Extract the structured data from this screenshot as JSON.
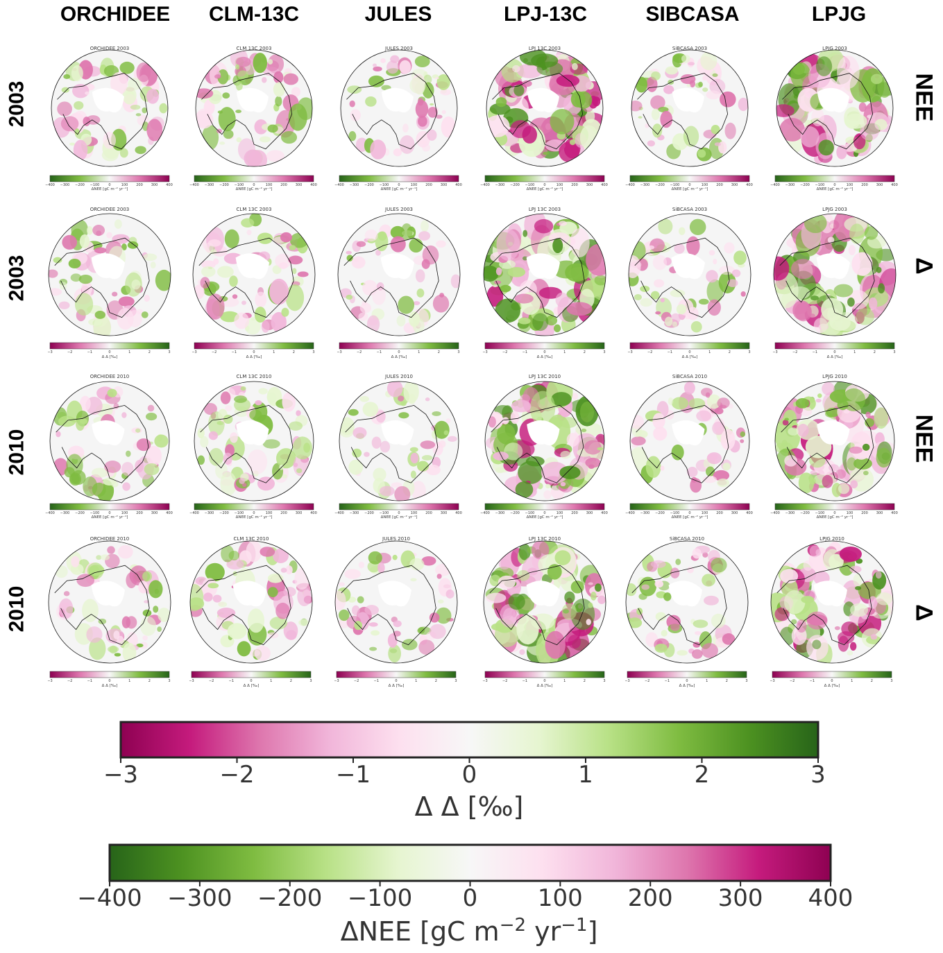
{
  "columns": [
    "ORCHIDEE",
    "CLM-13C",
    "JULES",
    "LPJ-13C",
    "SIBCASA",
    "LPJG"
  ],
  "rows": [
    {
      "year": "2003",
      "variable": "NEE",
      "type": "nee"
    },
    {
      "year": "2003",
      "variable": "Δ",
      "type": "delta"
    },
    {
      "year": "2010",
      "variable": "NEE",
      "type": "nee"
    },
    {
      "year": "2010",
      "variable": "Δ",
      "type": "delta"
    }
  ],
  "panel_titles": [
    [
      "ORCHIDEE 2003",
      "CLM 13C 2003",
      "JULES 2003",
      "LPJ 13C 2003",
      "SiBCASA 2003",
      "LPJG 2003"
    ],
    [
      "ORCHIDEE 2003",
      "CLM 13C 2003",
      "JULES 2003",
      "LPJ 13C 2003",
      "SiBCASA 2003",
      "LPJG 2003"
    ],
    [
      "ORCHIDEE 2010",
      "CLM 13C 2010",
      "JULES 2010",
      "LPJ 13C 2010",
      "SiBCASA 2010",
      "LPJG 2010"
    ],
    [
      "ORCHIDEE 2010",
      "CLM 13C 2010",
      "JULES 2010",
      "LPJ 13C 2010",
      "SiBCASA 2010",
      "LPJG 2010"
    ]
  ],
  "chart_data": [
    {
      "type": "heatmap",
      "description_kind": "small-multiple polar maps",
      "map_values_readable": false,
      "colorbars": [
        {
          "kind": "nee",
          "label": "ΔNEE [gC m⁻² yr⁻¹]",
          "ticks": [
            -400,
            -300,
            -200,
            -100,
            0,
            100,
            200,
            300,
            400
          ],
          "range": [
            -400,
            400
          ],
          "colors": [
            "#276419",
            "#7fbc41",
            "#f7f7f7",
            "#de77ae",
            "#8e0152"
          ]
        },
        {
          "kind": "delta",
          "label": "Δ Δ [‰]",
          "ticks": [
            -3,
            -2,
            -1,
            0,
            1,
            2,
            3
          ],
          "range": [
            -3,
            3
          ],
          "colors": [
            "#8e0152",
            "#de77ae",
            "#f7f7f7",
            "#7fbc41",
            "#276419"
          ]
        }
      ]
    },
    {
      "type": "heatmap",
      "role": "colorbar",
      "label": "Δ Δ [‰]",
      "ticks": [
        "−3",
        "−2",
        "−1",
        "0",
        "1",
        "2",
        "3"
      ],
      "range": [
        -3,
        3
      ],
      "colors": [
        "#8e0152",
        "#c51b7d",
        "#de77ae",
        "#f1b6da",
        "#fde0ef",
        "#f7f7f7",
        "#e6f5d0",
        "#b8e186",
        "#7fbc41",
        "#4d9221",
        "#276419"
      ]
    },
    {
      "type": "heatmap",
      "role": "colorbar",
      "label_main": "ΔNEE [gC m",
      "label_sup1": "−2",
      "label_mid": " yr",
      "label_sup2": "−1",
      "label_end": "]",
      "ticks": [
        "−400",
        "−300",
        "−200",
        "−100",
        "0",
        "100",
        "200",
        "300",
        "400"
      ],
      "range": [
        -400,
        400
      ],
      "colors": [
        "#276419",
        "#4d9221",
        "#7fbc41",
        "#b8e186",
        "#e6f5d0",
        "#f7f7f7",
        "#fde0ef",
        "#f1b6da",
        "#de77ae",
        "#c51b7d",
        "#8e0152"
      ]
    }
  ]
}
